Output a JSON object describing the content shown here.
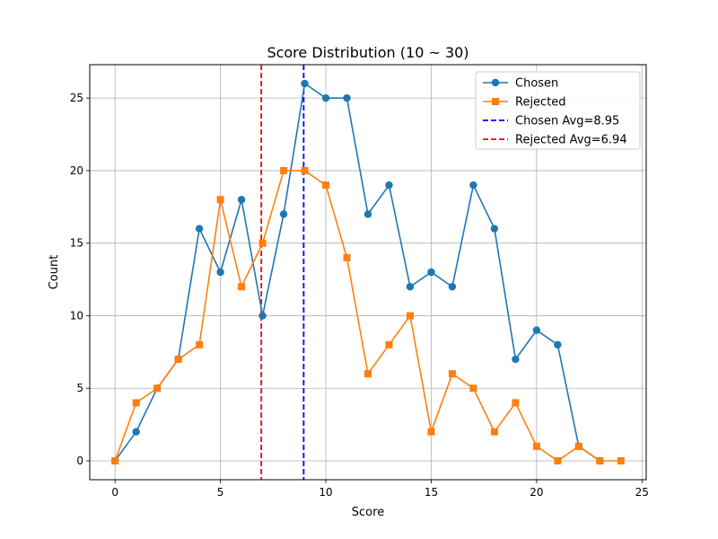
{
  "chart_data": {
    "type": "line",
    "title": "Score Distribution (10 ~ 30)",
    "xlabel": "Score",
    "ylabel": "Count",
    "xlim": [
      -1.2,
      25.2
    ],
    "ylim": [
      -1.3,
      27.3
    ],
    "xticks": [
      0,
      5,
      10,
      15,
      20,
      25
    ],
    "yticks": [
      0,
      5,
      10,
      15,
      20,
      25
    ],
    "grid": true,
    "legend_position": "top-right",
    "series": [
      {
        "name": "Chosen",
        "color": "#1f77b4",
        "marker": "circle",
        "x": [
          0,
          1,
          2,
          3,
          4,
          5,
          6,
          7,
          8,
          9,
          10,
          11,
          12,
          13,
          14,
          15,
          16,
          17,
          18,
          19,
          20,
          21,
          22,
          23
        ],
        "values": [
          0,
          2,
          5,
          7,
          16,
          13,
          18,
          10,
          17,
          26,
          25,
          25,
          17,
          19,
          12,
          13,
          12,
          19,
          16,
          7,
          9,
          8,
          1,
          0
        ]
      },
      {
        "name": "Rejected",
        "color": "#ff7f0e",
        "marker": "square",
        "x": [
          0,
          1,
          2,
          3,
          4,
          5,
          6,
          7,
          8,
          9,
          10,
          11,
          12,
          13,
          14,
          15,
          16,
          17,
          18,
          19,
          20,
          21,
          22,
          23,
          24
        ],
        "values": [
          0,
          4,
          5,
          7,
          8,
          18,
          12,
          15,
          20,
          20,
          19,
          14,
          6,
          8,
          10,
          2,
          6,
          5,
          2,
          4,
          1,
          0,
          1,
          0,
          0
        ]
      }
    ],
    "vlines": [
      {
        "name": "Chosen Avg=8.95",
        "x": 8.95,
        "color": "#0000ff"
      },
      {
        "name": "Rejected Avg=6.94",
        "x": 6.94,
        "color": "#ff0000"
      }
    ]
  }
}
